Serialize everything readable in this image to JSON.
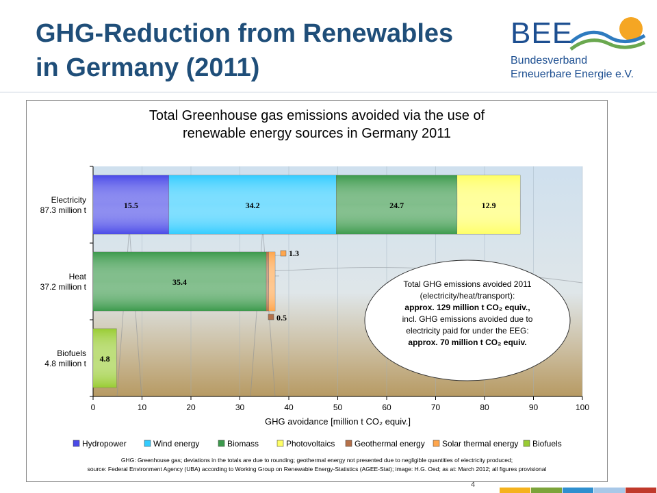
{
  "slide": {
    "title_line1": "GHG-Reduction from Renewables",
    "title_line2": "in Germany (2011)",
    "page_number": "4"
  },
  "logo": {
    "wordmark": "BEE",
    "line1": "Bundesverband",
    "line2": "Erneuerbare Energie e.V."
  },
  "chart_data": {
    "type": "bar",
    "orientation": "horizontal",
    "stacked": true,
    "title": [
      "Total Greenhouse gas emissions avoided via the use of",
      "renewable energy sources in Germany 2011"
    ],
    "xlabel": "GHG avoidance [million t CO₂ equiv.]",
    "xlim": [
      0,
      100
    ],
    "xticks": [
      0,
      10,
      20,
      30,
      40,
      50,
      60,
      70,
      80,
      90,
      100
    ],
    "categories": [
      {
        "name": "Electricity",
        "total": "87.3 million t"
      },
      {
        "name": "Heat",
        "total": "37.2 million t"
      },
      {
        "name": "Biofuels",
        "total": "4.8 million t"
      }
    ],
    "series": [
      {
        "name": "Hydropower",
        "color": "#4a4ae8",
        "values": [
          15.5,
          0,
          0
        ],
        "labels": [
          "15.5",
          null,
          null
        ]
      },
      {
        "name": "Wind energy",
        "color": "#33ccff",
        "values": [
          34.2,
          0,
          0
        ],
        "labels": [
          "34.2",
          null,
          null
        ]
      },
      {
        "name": "Biomass",
        "color": "#3c9a4c",
        "values": [
          24.7,
          35.4,
          0
        ],
        "labels": [
          "24.7",
          "35.4",
          null
        ]
      },
      {
        "name": "Photovoltaics",
        "color": "#ffff66",
        "values": [
          12.9,
          0,
          0
        ],
        "labels": [
          "12.9",
          null,
          null
        ]
      },
      {
        "name": "Geothermal energy",
        "color": "#b5714a",
        "values": [
          0,
          0.5,
          0
        ],
        "labels": [
          null,
          "0.5",
          null
        ]
      },
      {
        "name": "Solar thermal energy",
        "color": "#ffa64d",
        "values": [
          0,
          1.3,
          0
        ],
        "labels": [
          null,
          "1.3",
          null
        ]
      },
      {
        "name": "Biofuels",
        "color": "#99cc33",
        "values": [
          0,
          0,
          4.8
        ],
        "labels": [
          null,
          null,
          "4.8"
        ]
      }
    ],
    "legend_position": "bottom",
    "annotation": {
      "line1": "Total GHG emissions avoided 2011",
      "line2": "(electricity/heat/transport):",
      "line3": "approx. 129 million t CO₂ equiv.,",
      "line4": "incl. GHG emissions avoided due to",
      "line5": "electricity paid for under the EEG:",
      "line6": "approx. 70 million t CO₂ equiv."
    },
    "footnote": [
      "GHG: Greenhouse gas; deviations in the totals are due to rounding; geothermal energy not presented due to negligible quantities of electricity produced;",
      "source: Federal Environment Agency (UBA) according to Working Group on Renewable Energy-Statistics (AGEE-Stat); image: H.G. Oed; as at: March 2012; all figures provisional"
    ],
    "grid": true
  },
  "footer": {
    "colors": [
      "#f5b21d",
      "#7ca43a",
      "#2f8fcf",
      "#a8c8e8",
      "#c0392b"
    ]
  }
}
